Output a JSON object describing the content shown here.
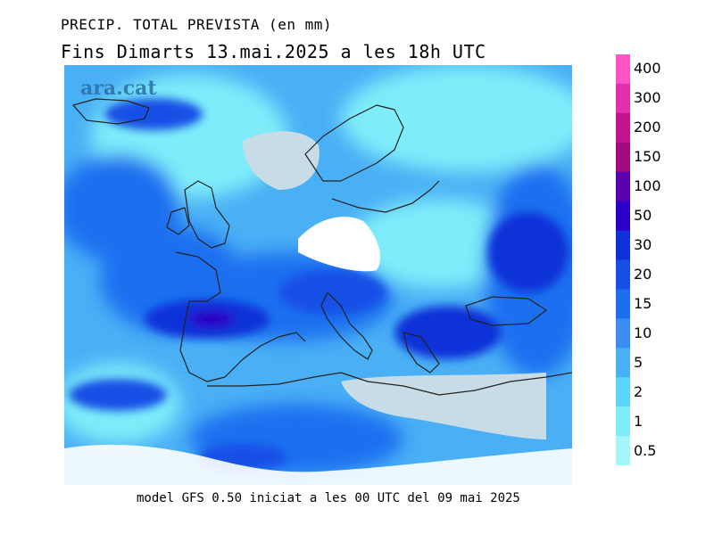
{
  "title": {
    "line1": "PRECIP. TOTAL PREVISTA (en mm)",
    "line2": "Fins Dimarts   13.mai.2025 a les 18h UTC"
  },
  "watermark": "ara.cat",
  "footer": "model GFS 0.50 iniciat a les 00 UTC del 09 mai 2025",
  "legend": {
    "labels": [
      "400",
      "300",
      "200",
      "150",
      "100",
      "50",
      "30",
      "20",
      "15",
      "10",
      "5",
      "2",
      "1",
      "0.5"
    ],
    "colors": [
      "#ff55c8",
      "#e22fb0",
      "#c1158f",
      "#a30a80",
      "#5b00b0",
      "#2b00c8",
      "#1030d8",
      "#1450e6",
      "#1e6ff0",
      "#3a8cf2",
      "#4ab0f5",
      "#5ad6f8",
      "#7eedf9",
      "#a5f6fb"
    ]
  },
  "map": {
    "land_color": "#c8dce8",
    "border_color": "#222222"
  }
}
